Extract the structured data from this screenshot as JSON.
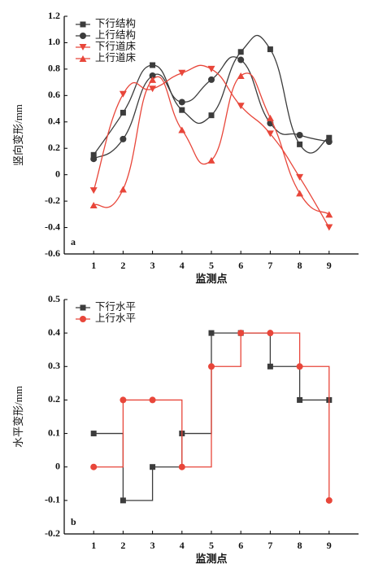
{
  "chart_data": [
    {
      "type": "line",
      "panel_label": "a",
      "xlabel": "监测点",
      "ylabel": "竖向变形/mm",
      "x": [
        1,
        2,
        3,
        4,
        5,
        6,
        7,
        8,
        9
      ],
      "xlim": [
        0,
        10
      ],
      "xticks": [
        1,
        2,
        3,
        4,
        5,
        6,
        7,
        8,
        9
      ],
      "ylim": [
        -0.6,
        1.2
      ],
      "yticks": [
        -0.6,
        -0.4,
        -0.2,
        0,
        0.2,
        0.4,
        0.6,
        0.8,
        {
          "value": 1,
          "label": "1.0"
        },
        1.2
      ],
      "legend": "upper-left",
      "series": [
        {
          "name": "下行结构",
          "color": "#3c3c3c",
          "marker": "square",
          "values": [
            0.15,
            0.47,
            0.83,
            0.49,
            0.45,
            0.93,
            0.95,
            0.23,
            0.28
          ]
        },
        {
          "name": "上行结构",
          "color": "#3c3c3c",
          "marker": "circle",
          "values": [
            0.12,
            0.27,
            0.75,
            0.55,
            0.72,
            0.87,
            0.39,
            0.3,
            0.25
          ]
        },
        {
          "name": "下行道床",
          "color": "#e8463a",
          "marker": "triangle-down",
          "values": [
            -0.12,
            0.61,
            0.65,
            0.77,
            0.8,
            0.52,
            0.31,
            -0.02,
            -0.4
          ]
        },
        {
          "name": "上行道床",
          "color": "#e8463a",
          "marker": "triangle-up",
          "values": [
            -0.23,
            -0.11,
            0.72,
            0.34,
            0.11,
            0.75,
            0.43,
            -0.14,
            -0.3
          ]
        }
      ]
    },
    {
      "type": "step",
      "panel_label": "b",
      "xlabel": "监测点",
      "ylabel": "水平变形/mm",
      "x": [
        1,
        2,
        3,
        4,
        5,
        6,
        7,
        8,
        9
      ],
      "xlim": [
        0,
        10
      ],
      "xticks": [
        1,
        2,
        3,
        4,
        5,
        6,
        7,
        8,
        9
      ],
      "ylim": [
        -0.2,
        0.5
      ],
      "yticks": [
        -0.2,
        -0.1,
        0,
        0.1,
        0.2,
        0.3,
        0.4,
        0.5
      ],
      "legend": "upper-left",
      "series": [
        {
          "name": "下行水平",
          "color": "#3c3c3c",
          "marker": "square",
          "values": [
            0.1,
            -0.1,
            0,
            0.1,
            0.4,
            0.4,
            0.3,
            0.2,
            0.2
          ]
        },
        {
          "name": "上行水平",
          "color": "#e8463a",
          "marker": "circle",
          "values": [
            0,
            0.2,
            0.2,
            0,
            0.3,
            0.4,
            0.4,
            0.3,
            -0.1
          ]
        }
      ]
    }
  ]
}
